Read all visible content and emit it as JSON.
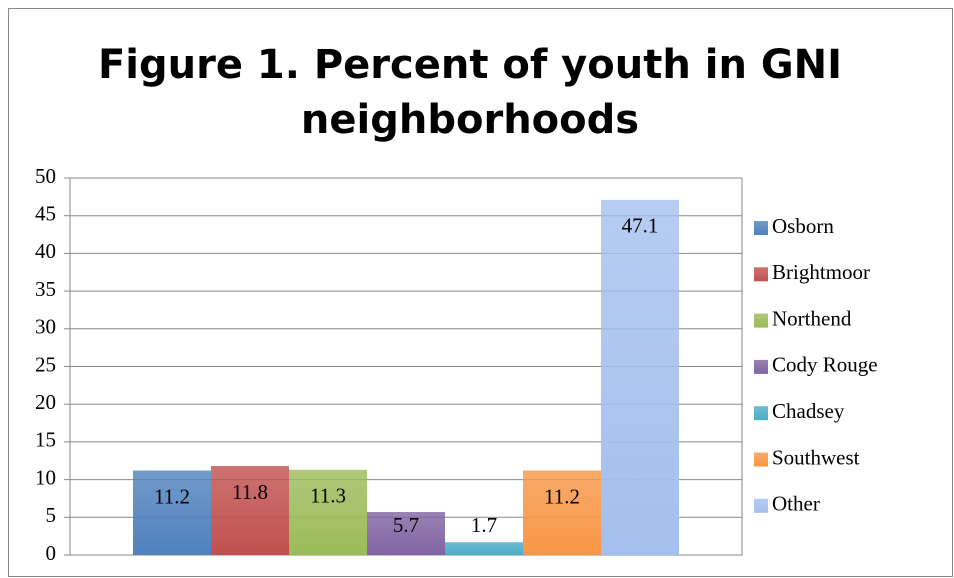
{
  "chart_data": {
    "type": "bar",
    "title": "Figure 1. Percent of youth in GNI neighborhoods",
    "series": [
      {
        "name": "Osborn",
        "color": "#4f81bd",
        "values": [
          11.2
        ]
      },
      {
        "name": "Brightmoor",
        "color": "#c0504d",
        "values": [
          11.8
        ]
      },
      {
        "name": "Northend",
        "color": "#9bbb59",
        "values": [
          11.3
        ]
      },
      {
        "name": "Cody Rouge",
        "color": "#8064a2",
        "values": [
          5.7
        ]
      },
      {
        "name": "Chadsey",
        "color": "#4bacc6",
        "values": [
          1.7
        ]
      },
      {
        "name": "Southwest",
        "color": "#f79646",
        "values": [
          11.2
        ]
      },
      {
        "name": "Other",
        "color": "#a5bfee",
        "values": [
          47.1
        ]
      }
    ],
    "ylim": [
      0,
      50
    ],
    "yticks": [
      0,
      5,
      10,
      15,
      20,
      25,
      30,
      35,
      40,
      45,
      50
    ],
    "grid": true,
    "legend": "right"
  }
}
